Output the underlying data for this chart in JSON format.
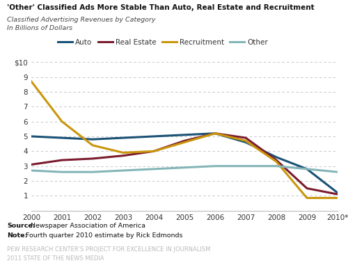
{
  "title": "'Other' Classified Ads More Stable Than Auto, Real Estate and Recruitment",
  "subtitle1": "Classified Advertising Revenues by Category",
  "subtitle2": "In Billions of Dollars",
  "source_label": "Source:",
  "source_text": " Newspaper Association of America",
  "note_label": "Note:",
  "note_text": " Fourth quarter 2010 estimate by Rick Edmonds",
  "footer1": "PEW RESEARCH CENTER’S PROJECT FOR EXCELLENCE IN JOURNALISM",
  "footer2": "2011 STATE OF THE NEWS MEDIA",
  "years": [
    2000,
    2001,
    2002,
    2003,
    2004,
    2005,
    2006,
    2007,
    2008,
    2009,
    2010
  ],
  "xtick_labels": [
    "2000",
    "2001",
    "2002",
    "2003",
    "2004",
    "2005",
    "2006",
    "2007",
    "2008",
    "2009",
    "2010*"
  ],
  "auto": [
    5.0,
    4.9,
    4.8,
    4.9,
    5.0,
    5.1,
    5.2,
    4.6,
    3.6,
    2.8,
    1.2
  ],
  "real_estate": [
    3.1,
    3.4,
    3.5,
    3.7,
    4.0,
    4.7,
    5.2,
    4.9,
    3.4,
    1.5,
    1.1
  ],
  "recruitment": [
    8.7,
    6.0,
    4.4,
    3.9,
    4.0,
    4.6,
    5.2,
    4.7,
    3.3,
    0.85,
    0.85
  ],
  "other": [
    2.7,
    2.6,
    2.6,
    2.7,
    2.8,
    2.9,
    3.0,
    3.0,
    3.0,
    2.8,
    2.6
  ],
  "color_auto": "#1a5276",
  "color_real_estate": "#7b1c2e",
  "color_recruitment": "#c9960c",
  "color_other": "#85b5b8",
  "ylim": [
    0,
    10
  ],
  "yticks": [
    0,
    1,
    2,
    3,
    4,
    5,
    6,
    7,
    8,
    9,
    10
  ],
  "ytick_labels": [
    "",
    "1",
    "2",
    "3",
    "4",
    "5",
    "6",
    "7",
    "8",
    "9",
    "$10"
  ],
  "bg_color": "#ffffff",
  "grid_color": "#aaaaaa",
  "linewidth": 2.2
}
